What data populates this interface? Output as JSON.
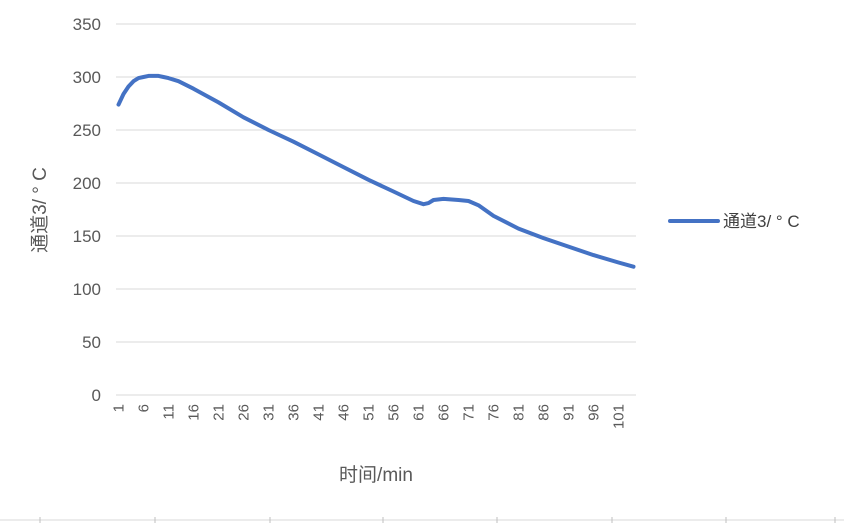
{
  "chart_data": {
    "type": "line",
    "title": "",
    "xlabel": "时间/min",
    "ylabel": "通道3/ ° C",
    "ylim": [
      0,
      350
    ],
    "yticks": [
      0,
      50,
      100,
      150,
      200,
      250,
      300,
      350
    ],
    "xlim": [
      1,
      104
    ],
    "xticks": [
      1,
      6,
      11,
      16,
      21,
      26,
      31,
      36,
      41,
      46,
      51,
      56,
      61,
      66,
      71,
      76,
      81,
      86,
      91,
      96,
      101
    ],
    "grid": true,
    "legend": "right",
    "series": [
      {
        "name": "通道3/ ° C",
        "color": "#4472C4",
        "points": [
          [
            1,
            274
          ],
          [
            2,
            284
          ],
          [
            3,
            291
          ],
          [
            4,
            296
          ],
          [
            5,
            299
          ],
          [
            6,
            300
          ],
          [
            7,
            301
          ],
          [
            8,
            301
          ],
          [
            9,
            301
          ],
          [
            10,
            300
          ],
          [
            11,
            299
          ],
          [
            13,
            296
          ],
          [
            16,
            289
          ],
          [
            21,
            276
          ],
          [
            26,
            262
          ],
          [
            31,
            250
          ],
          [
            36,
            239
          ],
          [
            41,
            227
          ],
          [
            46,
            215
          ],
          [
            51,
            203
          ],
          [
            56,
            192
          ],
          [
            60,
            183
          ],
          [
            62,
            180
          ],
          [
            63,
            181
          ],
          [
            64,
            184
          ],
          [
            66,
            185
          ],
          [
            69,
            184
          ],
          [
            71,
            183
          ],
          [
            73,
            179
          ],
          [
            76,
            169
          ],
          [
            81,
            157
          ],
          [
            86,
            148
          ],
          [
            91,
            140
          ],
          [
            96,
            132
          ],
          [
            101,
            125
          ],
          [
            104,
            121
          ]
        ]
      }
    ]
  }
}
